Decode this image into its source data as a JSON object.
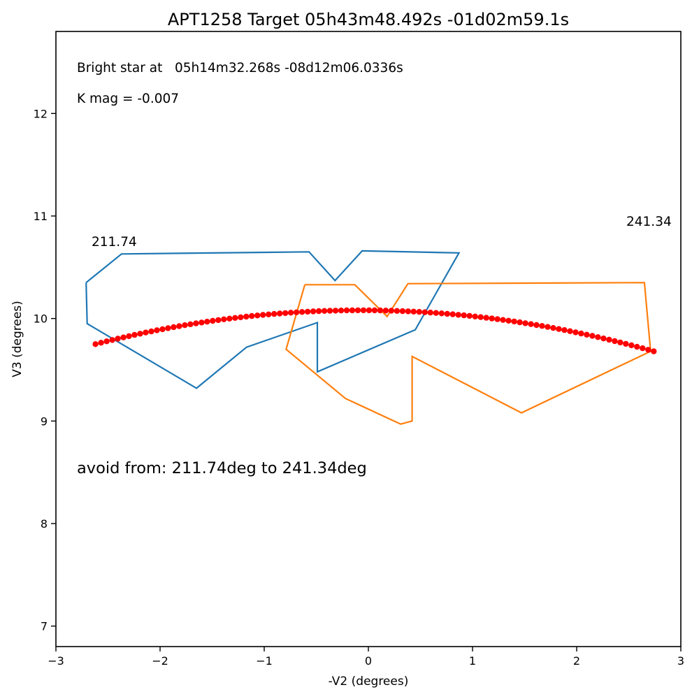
{
  "chart_data": {
    "type": "line",
    "title": "APT1258 Target 05h43m48.492s -01d02m59.1s",
    "xlabel": "-V2 (degrees)",
    "ylabel": "V3 (degrees)",
    "xlim": [
      -3,
      3
    ],
    "ylim": [
      6.8,
      12.8
    ],
    "xticks": [
      -3,
      -2,
      -1,
      0,
      1,
      2,
      3
    ],
    "xtick_labels": [
      "−3",
      "−2",
      "−1",
      "0",
      "1",
      "2",
      "3"
    ],
    "yticks": [
      7,
      8,
      9,
      10,
      11,
      12
    ],
    "ytick_labels": [
      "7",
      "8",
      "9",
      "10",
      "11",
      "12"
    ],
    "grid": false,
    "annotations": {
      "bright_star": "Bright star at   05h14m32.268s -08d12m06.0336s",
      "kmag": "K mag = -0.007",
      "angle_start": "211.74",
      "angle_end": "241.34",
      "avoid": "avoid from: 211.74deg to 241.34deg"
    },
    "series": [
      {
        "color": "#1f77b4",
        "points": [
          [
            -2.71,
            10.35
          ],
          [
            -2.7,
            9.95
          ],
          [
            -1.65,
            9.32
          ],
          [
            -1.17,
            9.72
          ],
          [
            -0.49,
            9.96
          ],
          [
            -0.49,
            9.48
          ],
          [
            0.45,
            9.89
          ],
          [
            0.87,
            10.64
          ],
          [
            -0.06,
            10.66
          ],
          [
            -0.32,
            10.37
          ],
          [
            -0.57,
            10.65
          ],
          [
            -2.37,
            10.63
          ],
          [
            -2.71,
            10.35
          ]
        ]
      },
      {
        "color": "#ff7f0e",
        "points": [
          [
            -0.61,
            10.33
          ],
          [
            -0.79,
            9.7
          ],
          [
            -0.22,
            9.22
          ],
          [
            0.31,
            8.97
          ],
          [
            0.42,
            9.0
          ],
          [
            0.42,
            9.63
          ],
          [
            1.47,
            9.08
          ],
          [
            2.71,
            9.68
          ],
          [
            2.65,
            10.35
          ],
          [
            0.38,
            10.34
          ],
          [
            0.18,
            10.02
          ],
          [
            -0.13,
            10.33
          ],
          [
            -0.61,
            10.33
          ]
        ]
      },
      {
        "color": "#ff0000",
        "style": "markers",
        "arc": {
          "x_start": -2.62,
          "x_end": 2.74,
          "y_start": 9.75,
          "y_peak": 10.08,
          "y_end": 9.68,
          "count": 101
        }
      }
    ]
  }
}
